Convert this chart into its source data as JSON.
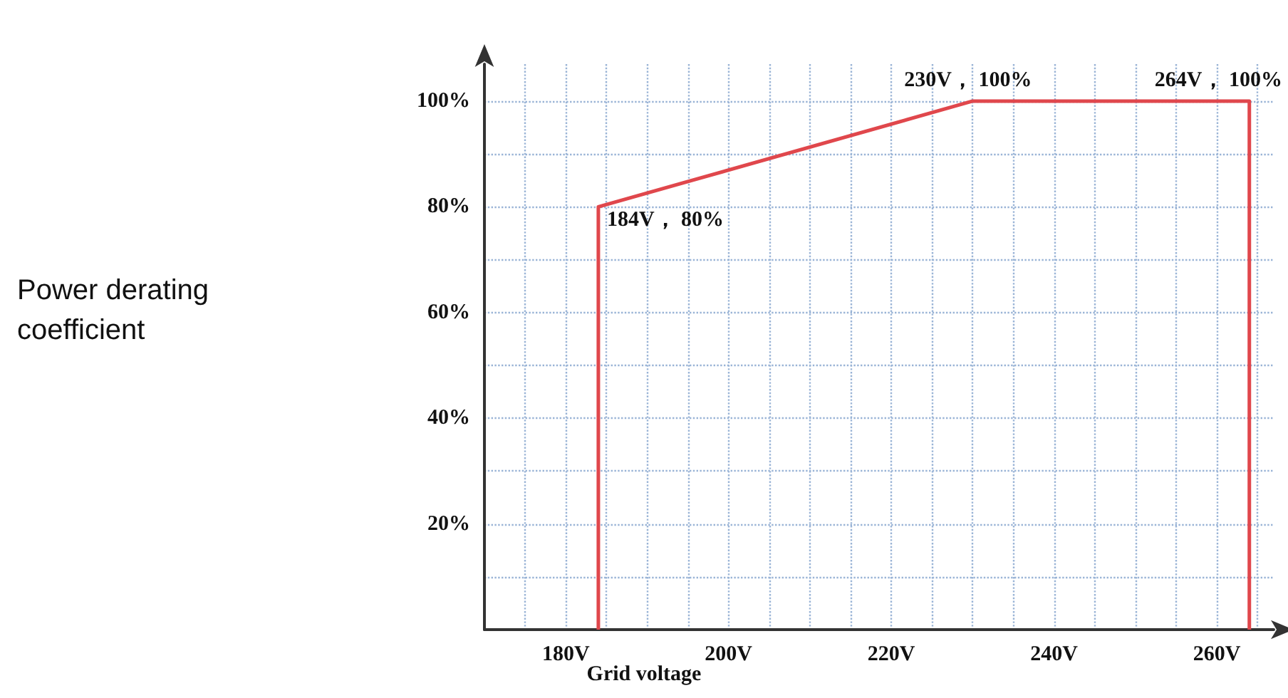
{
  "chart_data": {
    "type": "line",
    "xlabel": "Grid voltage",
    "x": [
      184,
      184,
      230,
      264,
      264
    ],
    "series": [
      {
        "color": "#e0474c",
        "values": [
          0,
          80,
          100,
          100,
          0
        ]
      }
    ],
    "xlim": [
      170,
      267
    ],
    "ylim": [
      0,
      107
    ],
    "xticks": [
      {
        "value": 175,
        "label": null
      },
      {
        "value": 180,
        "label": "180V"
      },
      {
        "value": 185,
        "label": null
      },
      {
        "value": 190,
        "label": null
      },
      {
        "value": 195,
        "label": null
      },
      {
        "value": 200,
        "label": "200V"
      },
      {
        "value": 205,
        "label": null
      },
      {
        "value": 210,
        "label": null
      },
      {
        "value": 215,
        "label": null
      },
      {
        "value": 220,
        "label": "220V"
      },
      {
        "value": 225,
        "label": null
      },
      {
        "value": 230,
        "label": null
      },
      {
        "value": 235,
        "label": null
      },
      {
        "value": 240,
        "label": "240V"
      },
      {
        "value": 245,
        "label": null
      },
      {
        "value": 250,
        "label": null
      },
      {
        "value": 255,
        "label": null
      },
      {
        "value": 260,
        "label": "260V"
      },
      {
        "value": 265,
        "label": null
      }
    ],
    "yticks": [
      {
        "value": 10,
        "label": null
      },
      {
        "value": 20,
        "label": "20%"
      },
      {
        "value": 30,
        "label": null
      },
      {
        "value": 40,
        "label": "40%"
      },
      {
        "value": 50,
        "label": null
      },
      {
        "value": 60,
        "label": "60%"
      },
      {
        "value": 70,
        "label": null
      },
      {
        "value": 80,
        "label": "80%"
      },
      {
        "value": 90,
        "label": null
      },
      {
        "value": 100,
        "label": "100%"
      }
    ],
    "grid": true,
    "marker": "none",
    "line_style": "solid",
    "annotations": [
      "Power derating coefficient",
      {
        "text": "184V， 80%",
        "x": 184,
        "y": 80
      },
      {
        "text": "230V， 100%",
        "x": 230,
        "y": 100
      },
      {
        "text": "264V， 100%",
        "x": 264,
        "y": 100
      }
    ]
  }
}
